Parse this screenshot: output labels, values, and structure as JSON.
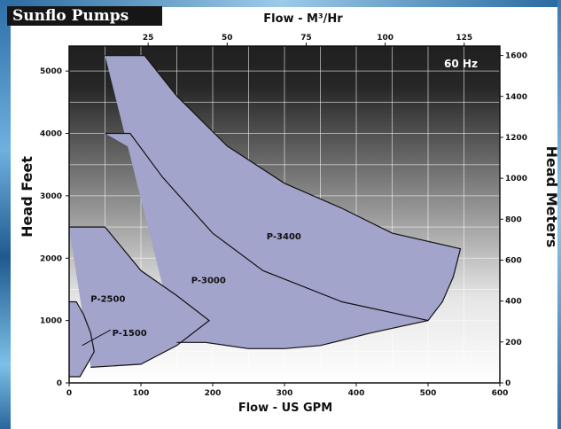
{
  "brand": "Sunflo Pumps",
  "chart_data": {
    "type": "area",
    "frequency_label": "60 Hz",
    "x_bottom": {
      "label": "Flow - US GPM",
      "range": [
        0,
        600
      ],
      "ticks": [
        0,
        100,
        200,
        300,
        400,
        500,
        600
      ]
    },
    "x_top": {
      "label": "Flow - M³/Hr",
      "ticks": [
        25,
        50,
        75,
        100,
        125
      ]
    },
    "y_left": {
      "label": "Head Feet",
      "range": [
        0,
        5400
      ],
      "ticks": [
        0,
        1000,
        2000,
        3000,
        4000,
        5000
      ]
    },
    "y_right": {
      "label": "Head Meters",
      "ticks": [
        0,
        200,
        400,
        600,
        800,
        1000,
        1200,
        1400,
        1600
      ]
    },
    "fill_color": "#a3a4cc",
    "series": [
      {
        "name": "P-1500",
        "outline": [
          [
            0,
            1300
          ],
          [
            10,
            1300
          ],
          [
            20,
            1100
          ],
          [
            30,
            800
          ],
          [
            35,
            500
          ],
          [
            25,
            300
          ],
          [
            15,
            100
          ],
          [
            0,
            100
          ]
        ]
      },
      {
        "name": "P-2500",
        "outline": [
          [
            0,
            2500
          ],
          [
            50,
            2500
          ],
          [
            100,
            1800
          ],
          [
            150,
            1400
          ],
          [
            195,
            1000
          ],
          [
            150,
            600
          ],
          [
            100,
            300
          ],
          [
            30,
            250
          ]
        ]
      },
      {
        "name": "P-3000",
        "outline": [
          [
            50,
            4000
          ],
          [
            85,
            4000
          ],
          [
            130,
            3300
          ],
          [
            200,
            2400
          ],
          [
            270,
            1800
          ],
          [
            380,
            1300
          ],
          [
            500,
            1000
          ]
        ]
      },
      {
        "name": "P-3400",
        "outline": [
          [
            50,
            5250
          ],
          [
            105,
            5250
          ],
          [
            150,
            4600
          ],
          [
            220,
            3800
          ],
          [
            300,
            3200
          ],
          [
            380,
            2800
          ],
          [
            450,
            2400
          ],
          [
            545,
            2150
          ],
          [
            535,
            1700
          ],
          [
            520,
            1300
          ],
          [
            500,
            1000
          ],
          [
            420,
            800
          ],
          [
            350,
            600
          ],
          [
            300,
            550
          ],
          [
            250,
            550
          ],
          [
            190,
            650
          ],
          [
            150,
            650
          ]
        ]
      }
    ],
    "labels": [
      "P-3400",
      "P-3000",
      "P-2500",
      "P-1500"
    ]
  }
}
